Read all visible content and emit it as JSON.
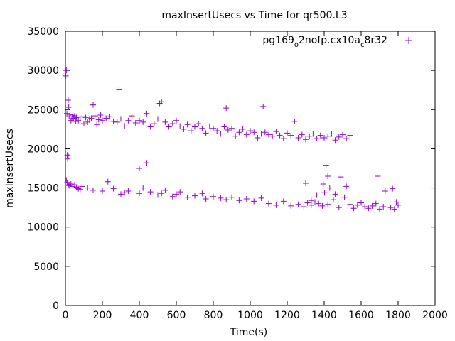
{
  "chart_data": {
    "type": "scatter",
    "title": "maxInsertUsecs vs Time for qr500.L3",
    "xlabel": "Time(s)",
    "ylabel": "maxInsertUsecs",
    "xlim": [
      0,
      2000
    ],
    "ylim": [
      0,
      35000
    ],
    "xticks": [
      0,
      200,
      400,
      600,
      800,
      1000,
      1200,
      1400,
      1600,
      1800,
      2000
    ],
    "yticks": [
      0,
      5000,
      10000,
      15000,
      20000,
      25000,
      30000,
      35000
    ],
    "grid": false,
    "marker": "+",
    "legend_position": "top-right",
    "color": "#9400d3",
    "series": [
      {
        "name_main": "pg169",
        "name_sub1": "o",
        "name_mid": "2nofp.cx10a",
        "name_sub2": "c",
        "name_end": "8r32",
        "x": [
          2,
          5,
          8,
          10,
          12,
          15,
          18,
          20,
          25,
          30,
          35,
          40,
          45,
          50,
          55,
          60,
          70,
          80,
          90,
          100,
          110,
          120,
          130,
          140,
          150,
          160,
          170,
          180,
          190,
          200,
          220,
          240,
          260,
          280,
          290,
          300,
          320,
          340,
          360,
          380,
          400,
          420,
          440,
          460,
          480,
          500,
          510,
          520,
          540,
          560,
          580,
          600,
          620,
          640,
          660,
          680,
          700,
          720,
          740,
          760,
          780,
          800,
          820,
          840,
          860,
          870,
          880,
          900,
          920,
          940,
          960,
          980,
          1000,
          1020,
          1040,
          1060,
          1070,
          1080,
          1100,
          1120,
          1140,
          1160,
          1180,
          1200,
          1220,
          1240,
          1260,
          1280,
          1300,
          1320,
          1340,
          1360,
          1380,
          1400,
          1420,
          1440,
          1460,
          1480,
          1500,
          1520,
          1540,
          5,
          10,
          15,
          20,
          30,
          40,
          50,
          60,
          70,
          80,
          120,
          150,
          200,
          230,
          260,
          300,
          320,
          340,
          400,
          420,
          460,
          500,
          520,
          540,
          580,
          600,
          620,
          660,
          700,
          740,
          760,
          800,
          840,
          870,
          900,
          940,
          980,
          1020,
          1060,
          1100,
          1140,
          1180,
          1220,
          1260,
          1290,
          1310,
          1330,
          1350,
          1370,
          1390,
          1420,
          1450,
          1480,
          1510,
          1540,
          1560,
          1580,
          1600,
          1620,
          1640,
          1660,
          1680,
          1700,
          1720,
          1740,
          1760,
          1780,
          1800,
          1410,
          1420,
          1430,
          1460,
          1490,
          1520,
          1690,
          1730,
          1770,
          1790,
          1300,
          1330,
          1360,
          400,
          440,
          90,
          15,
          1395,
          1402
        ],
        "y": [
          29300,
          30000,
          24500,
          19200,
          18700,
          26200,
          25300,
          24100,
          24400,
          23600,
          23800,
          24300,
          23900,
          24200,
          23500,
          24000,
          23600,
          23800,
          24100,
          23200,
          24000,
          23400,
          23800,
          23900,
          25600,
          24200,
          23100,
          23700,
          24300,
          23600,
          23900,
          24100,
          23500,
          23400,
          27600,
          23800,
          22900,
          23600,
          24200,
          23300,
          23600,
          23400,
          24500,
          22800,
          23200,
          23800,
          25800,
          26000,
          23400,
          22800,
          23200,
          23600,
          22900,
          22500,
          23100,
          22300,
          22800,
          23200,
          22600,
          22000,
          22900,
          22600,
          22300,
          21900,
          22800,
          25200,
          22400,
          22600,
          21600,
          22100,
          22500,
          21800,
          22300,
          22100,
          21400,
          21900,
          25400,
          22100,
          21800,
          21600,
          22200,
          21700,
          21300,
          22000,
          21700,
          23500,
          21400,
          21800,
          21200,
          21600,
          21900,
          21300,
          21700,
          21400,
          21600,
          21900,
          21100,
          21500,
          21800,
          21300,
          21700,
          16000,
          15700,
          15400,
          15300,
          15500,
          15200,
          15400,
          15100,
          14900,
          14800,
          15000,
          14700,
          14600,
          15800,
          14900,
          14200,
          14400,
          14600,
          14300,
          15000,
          14500,
          14100,
          14300,
          14700,
          13900,
          14200,
          14500,
          13800,
          14000,
          14300,
          13600,
          13900,
          13700,
          13500,
          13800,
          13400,
          13600,
          13300,
          13700,
          13000,
          12800,
          13300,
          12700,
          12900,
          12600,
          13100,
          12800,
          13200,
          13000,
          12700,
          12900,
          13500,
          12500,
          13800,
          12900,
          12400,
          12800,
          13100,
          12600,
          12400,
          12700,
          13000,
          12300,
          12600,
          12200,
          12500,
          12300,
          12800,
          17900,
          16500,
          15000,
          14200,
          16400,
          15200,
          16500,
          14600,
          14900,
          13200,
          15600,
          13400,
          14100,
          17500,
          18200,
          15200,
          19100,
          15500,
          14400
        ]
      }
    ]
  }
}
